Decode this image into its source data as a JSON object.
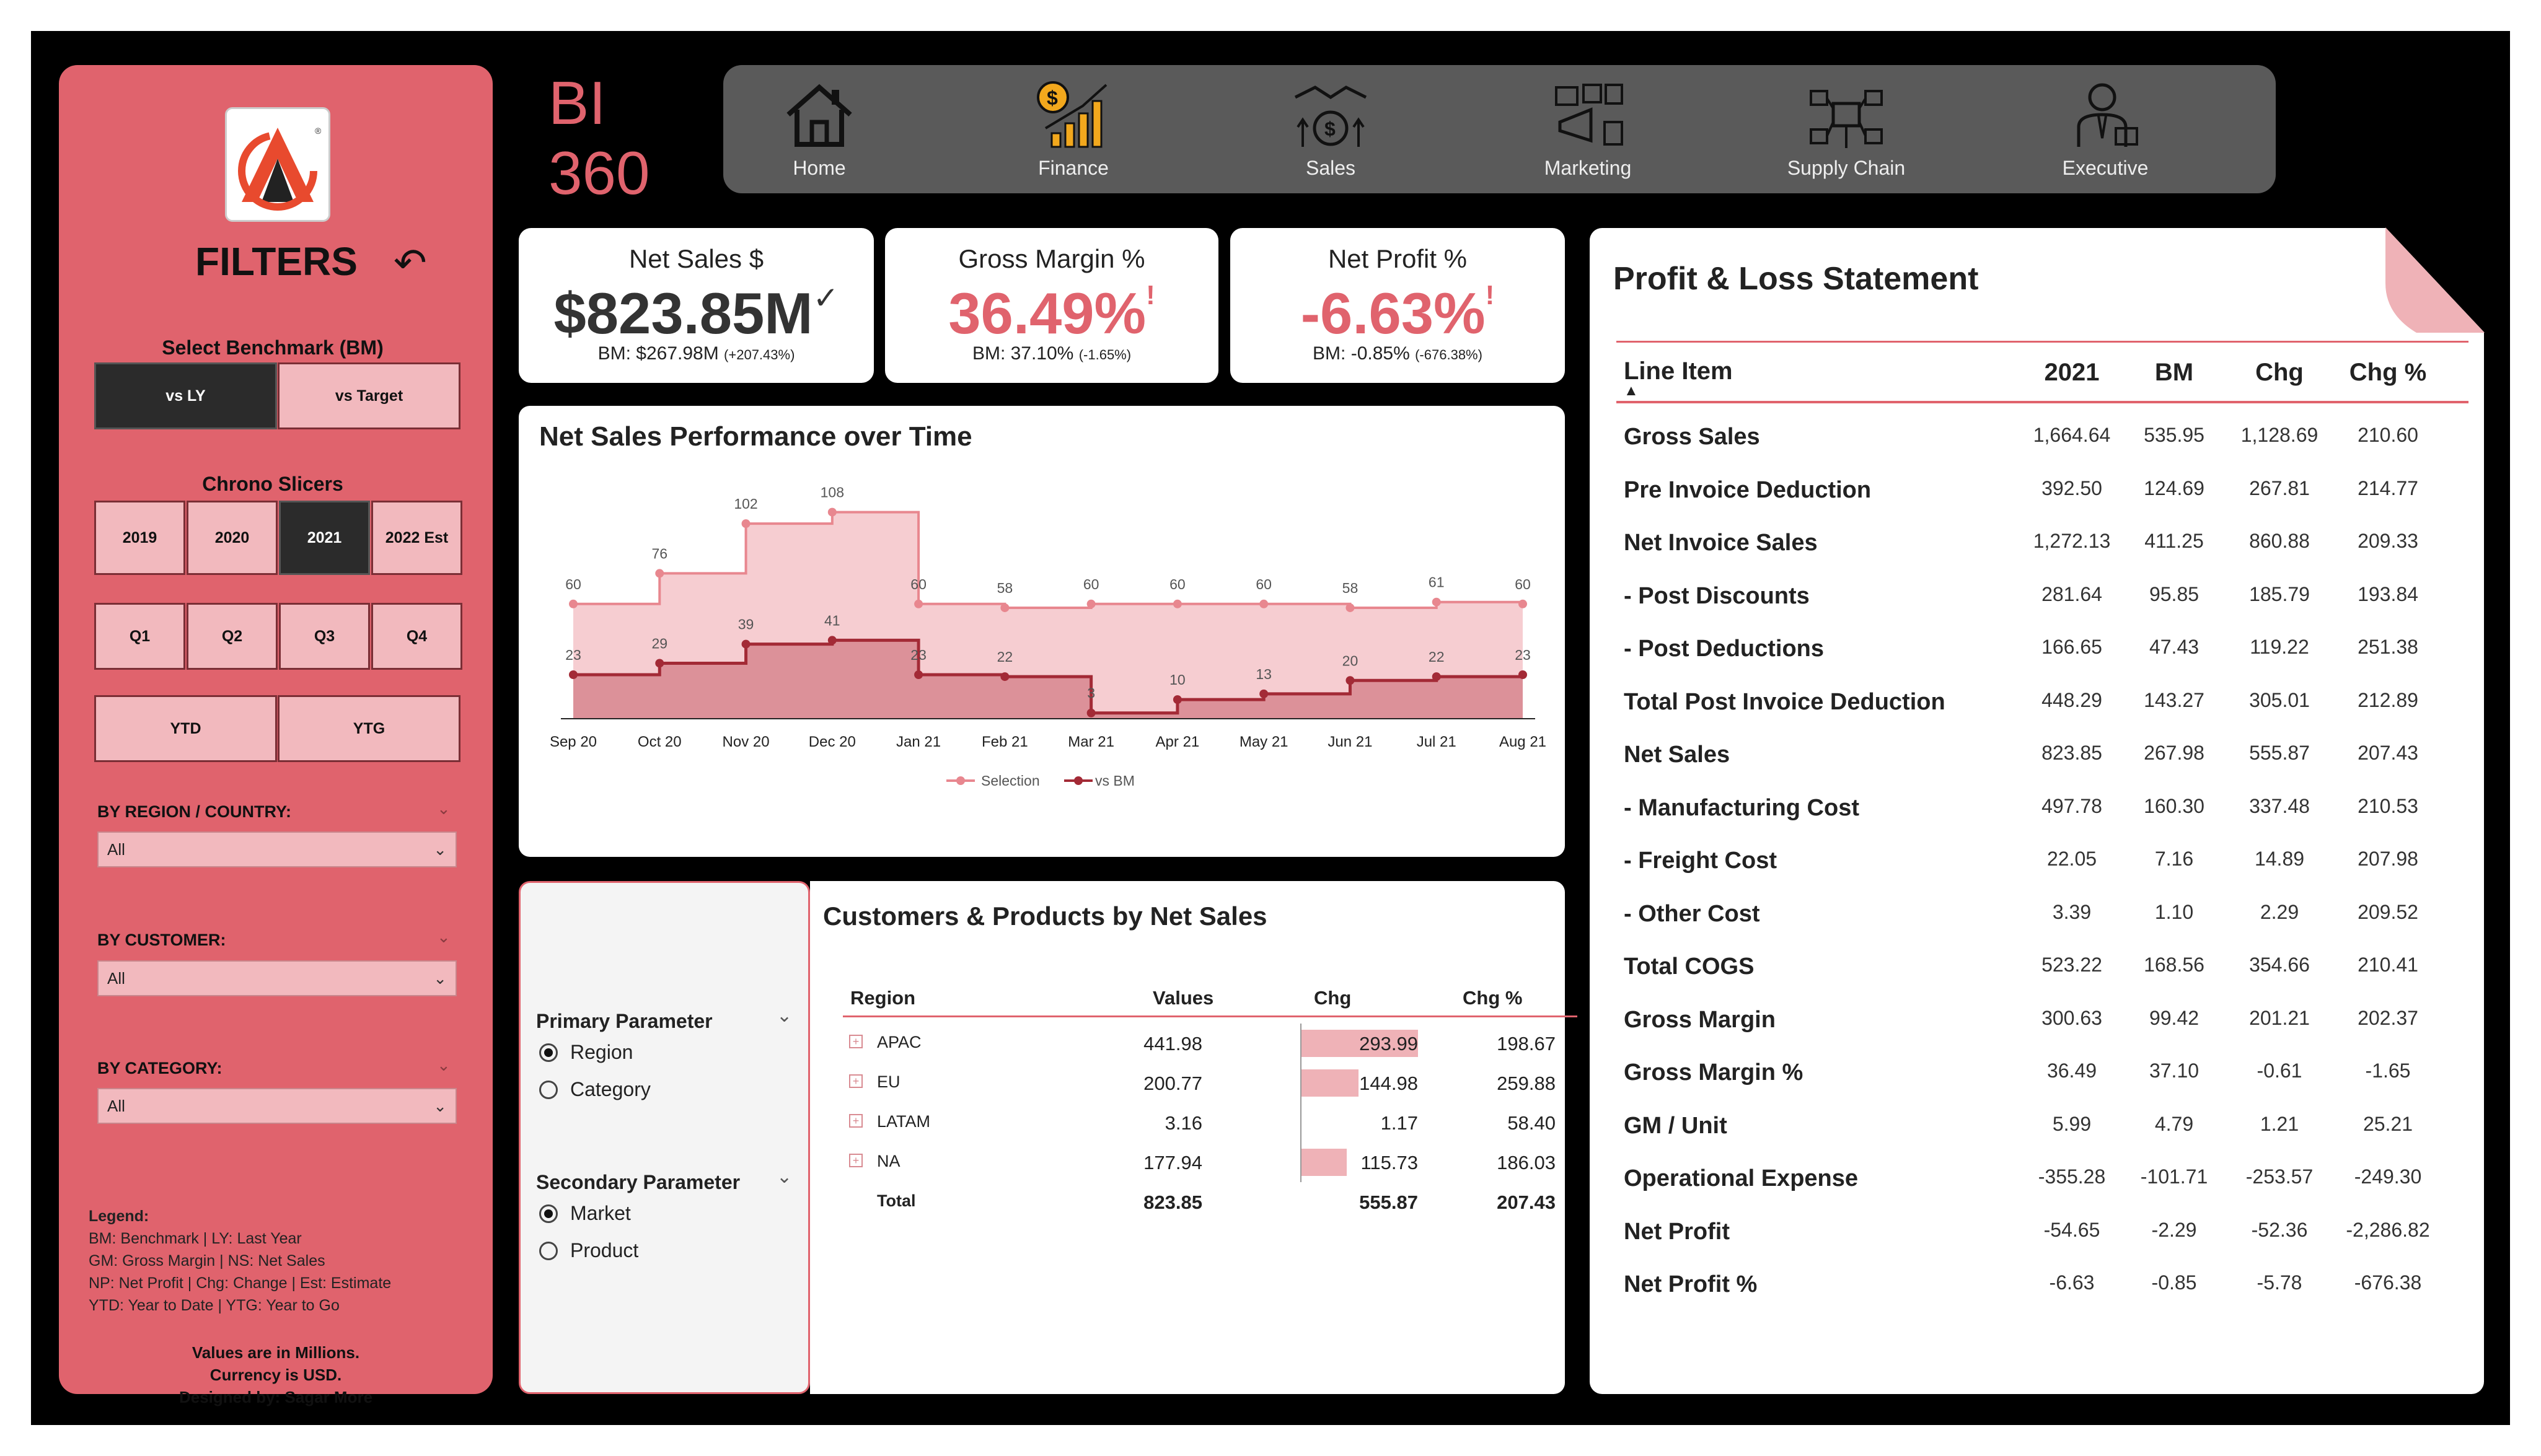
{
  "app": {
    "title_line1": "BI",
    "title_line2": "360"
  },
  "nav": [
    {
      "label": "Home",
      "icon": "home-icon"
    },
    {
      "label": "Finance",
      "icon": "finance-chart-icon"
    },
    {
      "label": "Sales",
      "icon": "sales-handshake-icon"
    },
    {
      "label": "Marketing",
      "icon": "marketing-icon"
    },
    {
      "label": "Supply Chain",
      "icon": "supply-chain-icon"
    },
    {
      "label": "Executive",
      "icon": "executive-icon"
    }
  ],
  "sidebar": {
    "title": "FILTERS",
    "benchmark_label": "Select Benchmark (BM)",
    "benchmark_options": [
      "vs LY",
      "vs Target"
    ],
    "benchmark_selected": "vs LY",
    "chrono_label": "Chrono Slicers",
    "years": [
      "2019",
      "2020",
      "2021",
      "2022 Est"
    ],
    "year_selected": "2021",
    "quarters": [
      "Q1",
      "Q2",
      "Q3",
      "Q4"
    ],
    "periods": [
      "YTD",
      "YTG"
    ],
    "region_label": "BY REGION / COUNTRY:",
    "region_value": "All",
    "customer_label": "BY CUSTOMER:",
    "customer_value": "All",
    "category_label": "BY CATEGORY:",
    "category_value": "All",
    "legend_title": "Legend:",
    "legend_lines": [
      "BM: Benchmark | LY: Last Year",
      "GM: Gross Margin | NS: Net Sales",
      "NP: Net Profit | Chg: Change | Est: Estimate",
      "YTD: Year to Date | YTG: Year to Go"
    ],
    "footer_lines": [
      "Values are in Millions.",
      "Currency is USD.",
      "Designed by: Sagar More"
    ]
  },
  "kpis": [
    {
      "title": "Net Sales $",
      "value": "$823.85M",
      "indicator": "✓",
      "bm": "BM: $267.98M",
      "bm_chg": "(+207.43%)",
      "color": "#333333"
    },
    {
      "title": "Gross Margin %",
      "value": "36.49%",
      "indicator": "!",
      "bm": "BM: 37.10%",
      "bm_chg": "(-1.65%)",
      "color": "#e0636d"
    },
    {
      "title": "Net Profit %",
      "value": "-6.63%",
      "indicator": "!",
      "bm": "BM: -0.85%",
      "bm_chg": "(-676.38%)",
      "color": "#e0636d"
    }
  ],
  "chart_title": "Net Sales Performance over Time",
  "chart_data": {
    "type": "area",
    "categories": [
      "Sep 20",
      "Oct 20",
      "Nov 20",
      "Dec 20",
      "Jan 21",
      "Feb 21",
      "Mar 21",
      "Apr 21",
      "May 21",
      "Jun 21",
      "Jul 21",
      "Aug 21"
    ],
    "series": [
      {
        "name": "Selection",
        "values": [
          60,
          76,
          102,
          108,
          60,
          58,
          60,
          60,
          60,
          58,
          61,
          60
        ],
        "color": "#e8878f"
      },
      {
        "name": "vs BM",
        "values": [
          23,
          29,
          39,
          41,
          23,
          22,
          3,
          10,
          13,
          20,
          22,
          23
        ],
        "color": "#a32a36"
      }
    ],
    "step": true,
    "legend": "bottom-center",
    "grid": false
  },
  "customers": {
    "title": "Customers & Products by Net Sales",
    "headers": [
      "Region",
      "Values",
      "Chg",
      "Chg %"
    ],
    "rows": [
      {
        "region": "APAC",
        "values": "441.98",
        "chg": "293.99",
        "chg_raw": 293.99,
        "chg_pct": "198.67"
      },
      {
        "region": "EU",
        "values": "200.77",
        "chg": "144.98",
        "chg_raw": 144.98,
        "chg_pct": "259.88"
      },
      {
        "region": "LATAM",
        "values": "3.16",
        "chg": "1.17",
        "chg_raw": 1.17,
        "chg_pct": "58.40"
      },
      {
        "region": "NA",
        "values": "177.94",
        "chg": "115.73",
        "chg_raw": 115.73,
        "chg_pct": "186.03"
      }
    ],
    "total": {
      "label": "Total",
      "values": "823.85",
      "chg": "555.87",
      "chg_pct": "207.43"
    }
  },
  "params": {
    "primary_label": "Primary Parameter",
    "primary_options": [
      "Region",
      "Category"
    ],
    "primary_selected": "Region",
    "secondary_label": "Secondary Parameter",
    "secondary_options": [
      "Market",
      "Product"
    ],
    "secondary_selected": "Market"
  },
  "pl": {
    "title": "Profit & Loss Statement",
    "headers": [
      "Line Item",
      "2021",
      "BM",
      "Chg",
      "Chg %"
    ],
    "rows": [
      [
        "Gross Sales",
        "1,664.64",
        "535.95",
        "1,128.69",
        "210.60"
      ],
      [
        "Pre Invoice Deduction",
        "392.50",
        "124.69",
        "267.81",
        "214.77"
      ],
      [
        "Net Invoice Sales",
        "1,272.13",
        "411.25",
        "860.88",
        "209.33"
      ],
      [
        "- Post Discounts",
        "281.64",
        "95.85",
        "185.79",
        "193.84"
      ],
      [
        "- Post Deductions",
        "166.65",
        "47.43",
        "119.22",
        "251.38"
      ],
      [
        "Total Post Invoice Deduction",
        "448.29",
        "143.27",
        "305.01",
        "212.89"
      ],
      [
        "Net Sales",
        "823.85",
        "267.98",
        "555.87",
        "207.43"
      ],
      [
        "- Manufacturing Cost",
        "497.78",
        "160.30",
        "337.48",
        "210.53"
      ],
      [
        "- Freight Cost",
        "22.05",
        "7.16",
        "14.89",
        "207.98"
      ],
      [
        "- Other Cost",
        "3.39",
        "1.10",
        "2.29",
        "209.52"
      ],
      [
        "Total COGS",
        "523.22",
        "168.56",
        "354.66",
        "210.41"
      ],
      [
        "Gross Margin",
        "300.63",
        "99.42",
        "201.21",
        "202.37"
      ],
      [
        "Gross Margin %",
        "36.49",
        "37.10",
        "-0.61",
        "-1.65"
      ],
      [
        "GM / Unit",
        "5.99",
        "4.79",
        "1.21",
        "25.21"
      ],
      [
        "Operational Expense",
        "-355.28",
        "-101.71",
        "-253.57",
        "-249.30"
      ],
      [
        "Net Profit",
        "-54.65",
        "-2.29",
        "-52.36",
        "-2,286.82"
      ],
      [
        "Net Profit %",
        "-6.63",
        "-0.85",
        "-5.78",
        "-676.38"
      ]
    ]
  }
}
